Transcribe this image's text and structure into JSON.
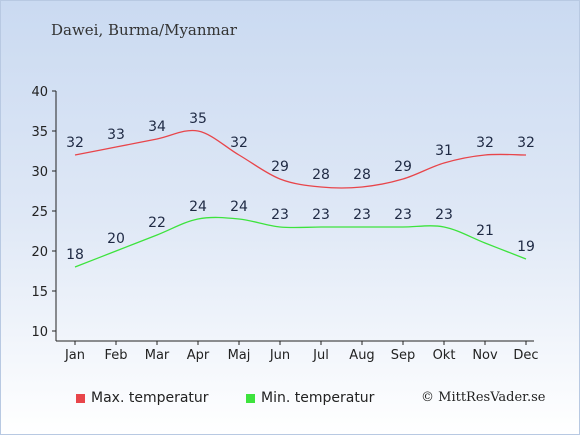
{
  "header": {
    "subtitle": "Dawei, Burma/Myanmar"
  },
  "footer": {
    "copyright": "© MittResVader.se"
  },
  "chart_data": {
    "type": "line",
    "categories": [
      "Jan",
      "Feb",
      "Mar",
      "Apr",
      "Maj",
      "Jun",
      "Jul",
      "Aug",
      "Sep",
      "Okt",
      "Nov",
      "Dec"
    ],
    "ylim": [
      10,
      40
    ],
    "yticks": [
      10,
      15,
      20,
      25,
      30,
      35,
      40
    ],
    "grid": false,
    "legend": "bottom",
    "series": [
      {
        "name": "Max. temperatur",
        "color": "#e8454a",
        "values": [
          32,
          33,
          34,
          35,
          32,
          29,
          28,
          28,
          29,
          31,
          32,
          32
        ]
      },
      {
        "name": "Min. temperatur",
        "color": "#3de33d",
        "values": [
          18,
          20,
          22,
          24,
          24,
          23,
          23,
          23,
          23,
          23,
          21,
          19
        ]
      }
    ]
  }
}
